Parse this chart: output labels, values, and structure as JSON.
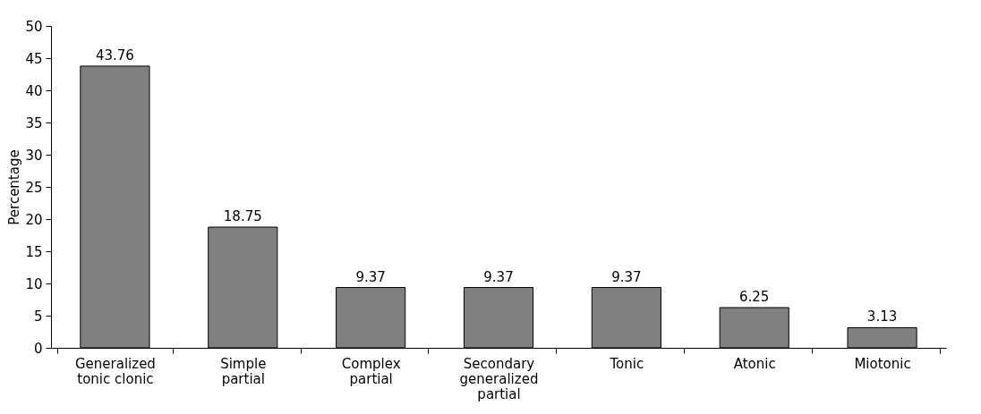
{
  "chart_data": {
    "type": "bar",
    "ylabel": "Percentage",
    "categories": [
      "Generalized tonic clonic",
      "Simple partial",
      "Complex partial",
      "Secondary generalized partial",
      "Tonic",
      "Atonic",
      "Miotonic"
    ],
    "values": [
      43.76,
      18.75,
      9.37,
      9.37,
      9.37,
      6.25,
      3.13
    ],
    "color": "#808080",
    "ylim": [
      0,
      50
    ],
    "yticks": [
      0,
      5,
      10,
      15,
      20,
      25,
      30,
      35,
      40,
      45,
      50
    ],
    "grid": false,
    "data_labels": true
  }
}
